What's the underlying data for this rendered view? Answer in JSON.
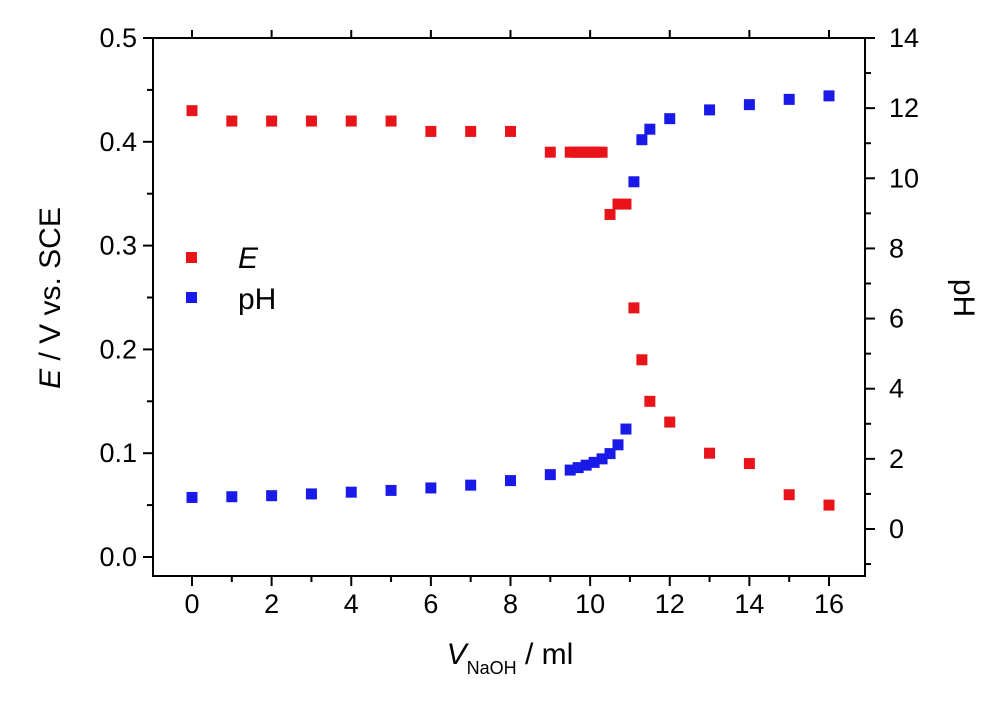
{
  "chart_data": {
    "type": "scatter",
    "x_axis": {
      "label_italic": "V",
      "label_subscript": "NaOH",
      "label_rest": " / ml",
      "range": [
        -1,
        17
      ],
      "ticks": [
        0,
        2,
        4,
        6,
        8,
        10,
        12,
        14,
        16
      ],
      "tick_labels": [
        "0",
        "2",
        "4",
        "6",
        "8",
        "10",
        "12",
        "14",
        "16"
      ]
    },
    "y_left_axis": {
      "label_italic": "E",
      "label_rest": " / V vs. SCE",
      "range": [
        -0.01,
        0.5
      ],
      "ticks": [
        0.0,
        0.1,
        0.2,
        0.3,
        0.4,
        0.5
      ],
      "tick_labels": [
        "0.0",
        "0.1",
        "0.2",
        "0.3",
        "0.4",
        "0.5"
      ]
    },
    "y_right_axis": {
      "label": "pH",
      "range": [
        -1,
        14
      ],
      "ticks": [
        0,
        2,
        4,
        6,
        8,
        10,
        12,
        14
      ],
      "tick_labels": [
        "0",
        "2",
        "4",
        "6",
        "8",
        "10",
        "12",
        "14"
      ]
    },
    "legend": {
      "position": "middle-left"
    },
    "series": [
      {
        "name": "E",
        "axis": "left",
        "color": "#e8141a",
        "marker": "square",
        "points": [
          [
            0,
            0.43
          ],
          [
            1,
            0.42
          ],
          [
            2,
            0.42
          ],
          [
            3,
            0.42
          ],
          [
            4,
            0.42
          ],
          [
            5,
            0.42
          ],
          [
            6,
            0.41
          ],
          [
            7,
            0.41
          ],
          [
            8,
            0.41
          ],
          [
            9,
            0.39
          ],
          [
            9.5,
            0.39
          ],
          [
            9.6,
            0.39
          ],
          [
            9.7,
            0.39
          ],
          [
            9.8,
            0.39
          ],
          [
            9.9,
            0.39
          ],
          [
            10,
            0.39
          ],
          [
            10.1,
            0.39
          ],
          [
            10.2,
            0.39
          ],
          [
            10.3,
            0.39
          ],
          [
            10.5,
            0.33
          ],
          [
            10.7,
            0.34
          ],
          [
            10.9,
            0.34
          ],
          [
            11.1,
            0.24
          ],
          [
            11.3,
            0.19
          ],
          [
            11.5,
            0.15
          ],
          [
            12,
            0.13
          ],
          [
            13,
            0.1
          ],
          [
            14,
            0.09
          ],
          [
            15,
            0.06
          ],
          [
            16,
            0.05
          ]
        ]
      },
      {
        "name": "pH",
        "axis": "right",
        "color": "#1a1ae8",
        "marker": "square",
        "points": [
          [
            0,
            0.9
          ],
          [
            1,
            0.92
          ],
          [
            2,
            0.95
          ],
          [
            3,
            1.0
          ],
          [
            4,
            1.05
          ],
          [
            5,
            1.1
          ],
          [
            6,
            1.17
          ],
          [
            7,
            1.25
          ],
          [
            8,
            1.38
          ],
          [
            9,
            1.55
          ],
          [
            9.5,
            1.68
          ],
          [
            9.7,
            1.75
          ],
          [
            9.9,
            1.82
          ],
          [
            10.1,
            1.9
          ],
          [
            10.3,
            2.0
          ],
          [
            10.5,
            2.15
          ],
          [
            10.7,
            2.4
          ],
          [
            10.9,
            2.85
          ],
          [
            11.1,
            9.9
          ],
          [
            11.3,
            11.1
          ],
          [
            11.5,
            11.4
          ],
          [
            12,
            11.7
          ],
          [
            13,
            11.95
          ],
          [
            14,
            12.1
          ],
          [
            15,
            12.25
          ],
          [
            16,
            12.35
          ]
        ]
      }
    ]
  }
}
